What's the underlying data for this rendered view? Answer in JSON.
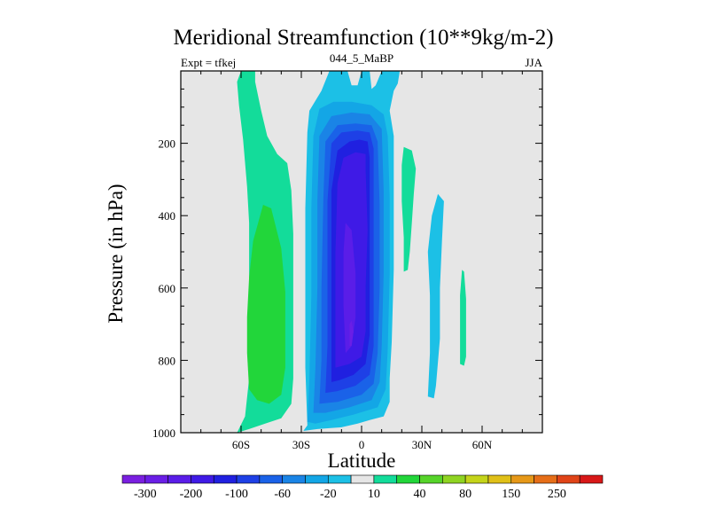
{
  "chart_data": {
    "type": "heatmap",
    "title": "Meridional Streamfunction (10**9kg/m-2)",
    "subtitle_left": "Expt = tfkej",
    "subtitle_center": "044_5_MaBP",
    "subtitle_right": "JJA",
    "xlabel": "Latitude",
    "ylabel": "Pressure (in hPa)",
    "xlim": [
      -90,
      90
    ],
    "ylim": [
      1000,
      0
    ],
    "x_ticks": [
      {
        "value": -60,
        "label": "60S"
      },
      {
        "value": -30,
        "label": "30S"
      },
      {
        "value": 0,
        "label": "0"
      },
      {
        "value": 30,
        "label": "30N"
      },
      {
        "value": 60,
        "label": "60N"
      }
    ],
    "y_ticks": [
      {
        "value": 200,
        "label": "200"
      },
      {
        "value": 400,
        "label": "400"
      },
      {
        "value": 600,
        "label": "600"
      },
      {
        "value": 800,
        "label": "800"
      },
      {
        "value": 1000,
        "label": "1000"
      }
    ],
    "background_color": "#e6e6e6",
    "colorbar": {
      "colors": [
        "#7a1fe0",
        "#6a1ee6",
        "#5a1de8",
        "#3f1ae6",
        "#2020e0",
        "#1e40e6",
        "#1a62e8",
        "#1a84e6",
        "#13a6e6",
        "#1cc0e6",
        "#e6e6e6",
        "#13dc9a",
        "#22d63a",
        "#56d42a",
        "#8fd422",
        "#c4d41a",
        "#e0c018",
        "#e69818",
        "#e66e18",
        "#e04418",
        "#d81818"
      ],
      "labels": [
        "-300",
        "-200",
        "-100",
        "-60",
        "-20",
        "10",
        "40",
        "80",
        "150",
        "250"
      ]
    },
    "regions": [
      {
        "level": 1,
        "color": "#13dc9a",
        "points": [
          [
            -62,
            1000
          ],
          [
            -58,
            955
          ],
          [
            -56,
            850
          ],
          [
            -56,
            700
          ],
          [
            -56,
            560
          ],
          [
            -56,
            420
          ],
          [
            -57,
            320
          ],
          [
            -59,
            190
          ],
          [
            -61,
            95
          ],
          [
            -62,
            30
          ],
          [
            -60,
            0
          ],
          [
            -53,
            0
          ],
          [
            -53,
            30
          ],
          [
            -50,
            110
          ],
          [
            -47,
            180
          ],
          [
            -42,
            230
          ],
          [
            -37,
            255
          ],
          [
            -35,
            330
          ],
          [
            -34,
            450
          ],
          [
            -34,
            600
          ],
          [
            -34,
            750
          ],
          [
            -34,
            850
          ],
          [
            -35,
            920
          ],
          [
            -40,
            960
          ],
          [
            -48,
            975
          ],
          [
            -56,
            990
          ]
        ]
      },
      {
        "level": 2,
        "color": "#22d63a",
        "points": [
          [
            -56,
            880
          ],
          [
            -57,
            780
          ],
          [
            -57,
            680
          ],
          [
            -56,
            570
          ],
          [
            -54,
            470
          ],
          [
            -49,
            370
          ],
          [
            -45,
            380
          ],
          [
            -40,
            490
          ],
          [
            -38,
            610
          ],
          [
            -38,
            720
          ],
          [
            -38,
            820
          ],
          [
            -40,
            895
          ],
          [
            -46,
            920
          ],
          [
            -52,
            910
          ]
        ]
      },
      {
        "level": 1,
        "color": "#13dc9a",
        "points": [
          [
            21,
            555
          ],
          [
            21,
            460
          ],
          [
            20,
            360
          ],
          [
            20,
            260
          ],
          [
            21,
            210
          ],
          [
            25,
            220
          ],
          [
            27,
            270
          ],
          [
            26,
            340
          ],
          [
            25,
            420
          ],
          [
            24,
            500
          ],
          [
            23,
            550
          ]
        ]
      },
      {
        "level": 1,
        "color": "#13dc9a",
        "points": [
          [
            49,
            810
          ],
          [
            49,
            720
          ],
          [
            49,
            620
          ],
          [
            50,
            550
          ],
          [
            51,
            555
          ],
          [
            52,
            630
          ],
          [
            52,
            720
          ],
          [
            52,
            790
          ],
          [
            51,
            815
          ]
        ]
      },
      {
        "level": -1,
        "color": "#1cc0e6",
        "points": [
          [
            -29,
            995
          ],
          [
            -27,
            980
          ],
          [
            -28,
            820
          ],
          [
            -28,
            600
          ],
          [
            -28,
            380
          ],
          [
            -27,
            170
          ],
          [
            -26,
            110
          ],
          [
            -20,
            55
          ],
          [
            -16,
            0
          ],
          [
            -7,
            0
          ],
          [
            -5,
            40
          ],
          [
            -2,
            40
          ],
          [
            0,
            0
          ],
          [
            4,
            0
          ],
          [
            5,
            50
          ],
          [
            7,
            40
          ],
          [
            10,
            0
          ],
          [
            19,
            0
          ],
          [
            18,
            35
          ],
          [
            16,
            55
          ],
          [
            14,
            110
          ],
          [
            16,
            180
          ],
          [
            16,
            350
          ],
          [
            16,
            550
          ],
          [
            15,
            750
          ],
          [
            14,
            850
          ],
          [
            14,
            915
          ],
          [
            11,
            955
          ],
          [
            4,
            965
          ],
          [
            -2,
            975
          ],
          [
            -10,
            985
          ],
          [
            -22,
            990
          ]
        ]
      },
      {
        "level": -1,
        "color": "#1cc0e6",
        "points": [
          [
            33,
            900
          ],
          [
            34,
            780
          ],
          [
            34,
            620
          ],
          [
            33,
            500
          ],
          [
            35,
            400
          ],
          [
            38,
            340
          ],
          [
            41,
            360
          ],
          [
            40,
            470
          ],
          [
            39,
            600
          ],
          [
            39,
            740
          ],
          [
            37,
            870
          ],
          [
            36,
            905
          ]
        ]
      },
      {
        "level": -2,
        "color": "#13a6e6",
        "points": [
          [
            -27,
            970
          ],
          [
            -26,
            850
          ],
          [
            -25,
            620
          ],
          [
            -25,
            380
          ],
          [
            -24,
            180
          ],
          [
            -21,
            105
          ],
          [
            -14,
            85
          ],
          [
            -5,
            85
          ],
          [
            5,
            95
          ],
          [
            11,
            120
          ],
          [
            13,
            180
          ],
          [
            14,
            350
          ],
          [
            14,
            560
          ],
          [
            13,
            770
          ],
          [
            12,
            880
          ],
          [
            8,
            930
          ],
          [
            -4,
            950
          ],
          [
            -15,
            965
          ],
          [
            -23,
            975
          ]
        ]
      },
      {
        "level": -3,
        "color": "#1a84e6",
        "points": [
          [
            -24,
            945
          ],
          [
            -23,
            820
          ],
          [
            -22,
            600
          ],
          [
            -22,
            360
          ],
          [
            -21,
            180
          ],
          [
            -15,
            125
          ],
          [
            -5,
            115
          ],
          [
            4,
            120
          ],
          [
            10,
            160
          ],
          [
            11,
            330
          ],
          [
            11,
            560
          ],
          [
            10,
            760
          ],
          [
            9,
            860
          ],
          [
            5,
            910
          ],
          [
            -6,
            930
          ],
          [
            -18,
            945
          ]
        ]
      },
      {
        "level": -4,
        "color": "#1a62e8",
        "points": [
          [
            -21,
            920
          ],
          [
            -20,
            800
          ],
          [
            -20,
            600
          ],
          [
            -19,
            350
          ],
          [
            -18,
            195
          ],
          [
            -12,
            150
          ],
          [
            -3,
            145
          ],
          [
            5,
            150
          ],
          [
            8,
            195
          ],
          [
            9,
            370
          ],
          [
            9,
            600
          ],
          [
            8,
            780
          ],
          [
            6,
            865
          ],
          [
            0,
            895
          ],
          [
            -12,
            915
          ]
        ]
      },
      {
        "level": -5,
        "color": "#1e40e6",
        "points": [
          [
            -18,
            890
          ],
          [
            -17,
            760
          ],
          [
            -17,
            580
          ],
          [
            -17,
            360
          ],
          [
            -15,
            200
          ],
          [
            -10,
            170
          ],
          [
            -2,
            165
          ],
          [
            4,
            170
          ],
          [
            6,
            215
          ],
          [
            6,
            400
          ],
          [
            6,
            600
          ],
          [
            6,
            760
          ],
          [
            4,
            840
          ],
          [
            -3,
            870
          ],
          [
            -12,
            885
          ]
        ]
      },
      {
        "level": -6,
        "color": "#2020e0",
        "points": [
          [
            -15,
            860
          ],
          [
            -15,
            720
          ],
          [
            -15,
            540
          ],
          [
            -15,
            330
          ],
          [
            -12,
            220
          ],
          [
            -6,
            195
          ],
          [
            -1,
            190
          ],
          [
            3,
            195
          ],
          [
            4,
            240
          ],
          [
            4,
            420
          ],
          [
            4,
            600
          ],
          [
            4,
            730
          ],
          [
            2,
            810
          ],
          [
            -4,
            840
          ],
          [
            -11,
            855
          ]
        ]
      },
      {
        "level": -7,
        "color": "#3f1ae6",
        "points": [
          [
            -13,
            820
          ],
          [
            -13,
            680
          ],
          [
            -13,
            500
          ],
          [
            -12,
            310
          ],
          [
            -9,
            240
          ],
          [
            -3,
            225
          ],
          [
            2,
            230
          ],
          [
            2,
            270
          ],
          [
            3,
            440
          ],
          [
            2,
            600
          ],
          [
            2,
            720
          ],
          [
            0,
            790
          ],
          [
            -6,
            810
          ]
        ]
      },
      {
        "level": -8,
        "color": "#5a1de8",
        "points": [
          [
            -8,
            780
          ],
          [
            -9,
            650
          ],
          [
            -9,
            500
          ],
          [
            -8,
            420
          ],
          [
            -5,
            440
          ],
          [
            -3,
            560
          ],
          [
            -3,
            680
          ],
          [
            -5,
            760
          ]
        ]
      },
      {
        "level": -9,
        "color": "#6a1ee6",
        "points": [
          [
            -6,
            760
          ],
          [
            -6,
            700
          ],
          [
            -5,
            690
          ],
          [
            -4,
            720
          ],
          [
            -5,
            760
          ]
        ]
      }
    ]
  }
}
